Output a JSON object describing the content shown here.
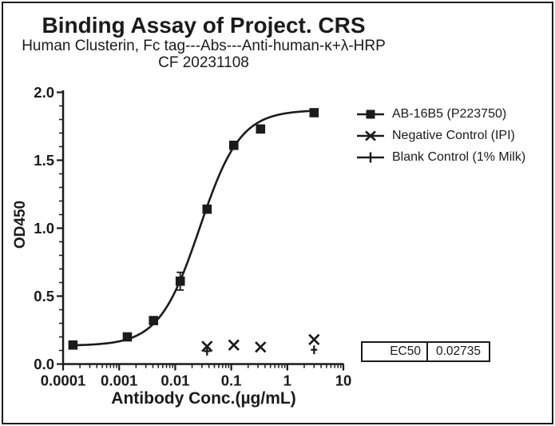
{
  "colors": {
    "ink": "#1b1b1b",
    "background": "#ffffff"
  },
  "chart_data": {
    "type": "scatter",
    "title": "Binding Assay of Project. CRS",
    "subtitle": "Human Clusterin, Fc tag---Abs---Anti-human-κ+λ-HRP",
    "date_line": "CF 20231108",
    "xlabel": "Antibody Conc.(µg/mL)",
    "ylabel": "OD450",
    "x_scale": "log10",
    "xlim": [
      0.0001,
      10
    ],
    "ylim": [
      0.0,
      2.0
    ],
    "x_major_ticks": [
      0.0001,
      0.001,
      0.01,
      0.1,
      1,
      10
    ],
    "x_major_tick_labels": [
      "0.0001",
      "0.001",
      "0.01",
      "0.1",
      "1",
      "10"
    ],
    "y_major_ticks": [
      0.0,
      0.5,
      1.0,
      1.5,
      2.0
    ],
    "y_major_tick_labels": [
      "0.0",
      "0.5",
      "1.0",
      "1.5",
      "2.0"
    ],
    "y_minor_tick_step": 0.1,
    "grid": false,
    "legend_position": "right-outside",
    "series": [
      {
        "name": "AB-16B5 (P223750)",
        "marker": "filled-square",
        "line": "4pl-fit-curve",
        "x": [
          0.00015,
          0.0014,
          0.0041,
          0.0123,
          0.037,
          0.111,
          0.333,
          3
        ],
        "y": [
          0.14,
          0.2,
          0.32,
          0.61,
          1.14,
          1.61,
          1.73,
          1.85
        ],
        "yerr": [
          0,
          0,
          0,
          0.065,
          0,
          0,
          0,
          0
        ],
        "fit": {
          "model": "4PL",
          "bottom": 0.135,
          "top": 1.87,
          "ec50": 0.02735,
          "hillslope": 1.2,
          "x_start": 0.00015,
          "x_end": 3
        }
      },
      {
        "name": "Negative Control (IPI)",
        "marker": "x",
        "line": "none",
        "x": [
          0.037,
          0.111,
          0.333,
          3
        ],
        "y": [
          0.13,
          0.14,
          0.125,
          0.18
        ],
        "yerr": [
          0,
          0,
          0,
          0
        ]
      },
      {
        "name": "Blank Control (1% Milk)",
        "marker": "plus",
        "line": "none",
        "x": [
          0.037,
          3
        ],
        "y": [
          0.095,
          0.105
        ],
        "yerr": [
          0,
          0
        ]
      }
    ],
    "ec50": {
      "label": "EC50",
      "value": "0.02735"
    }
  }
}
